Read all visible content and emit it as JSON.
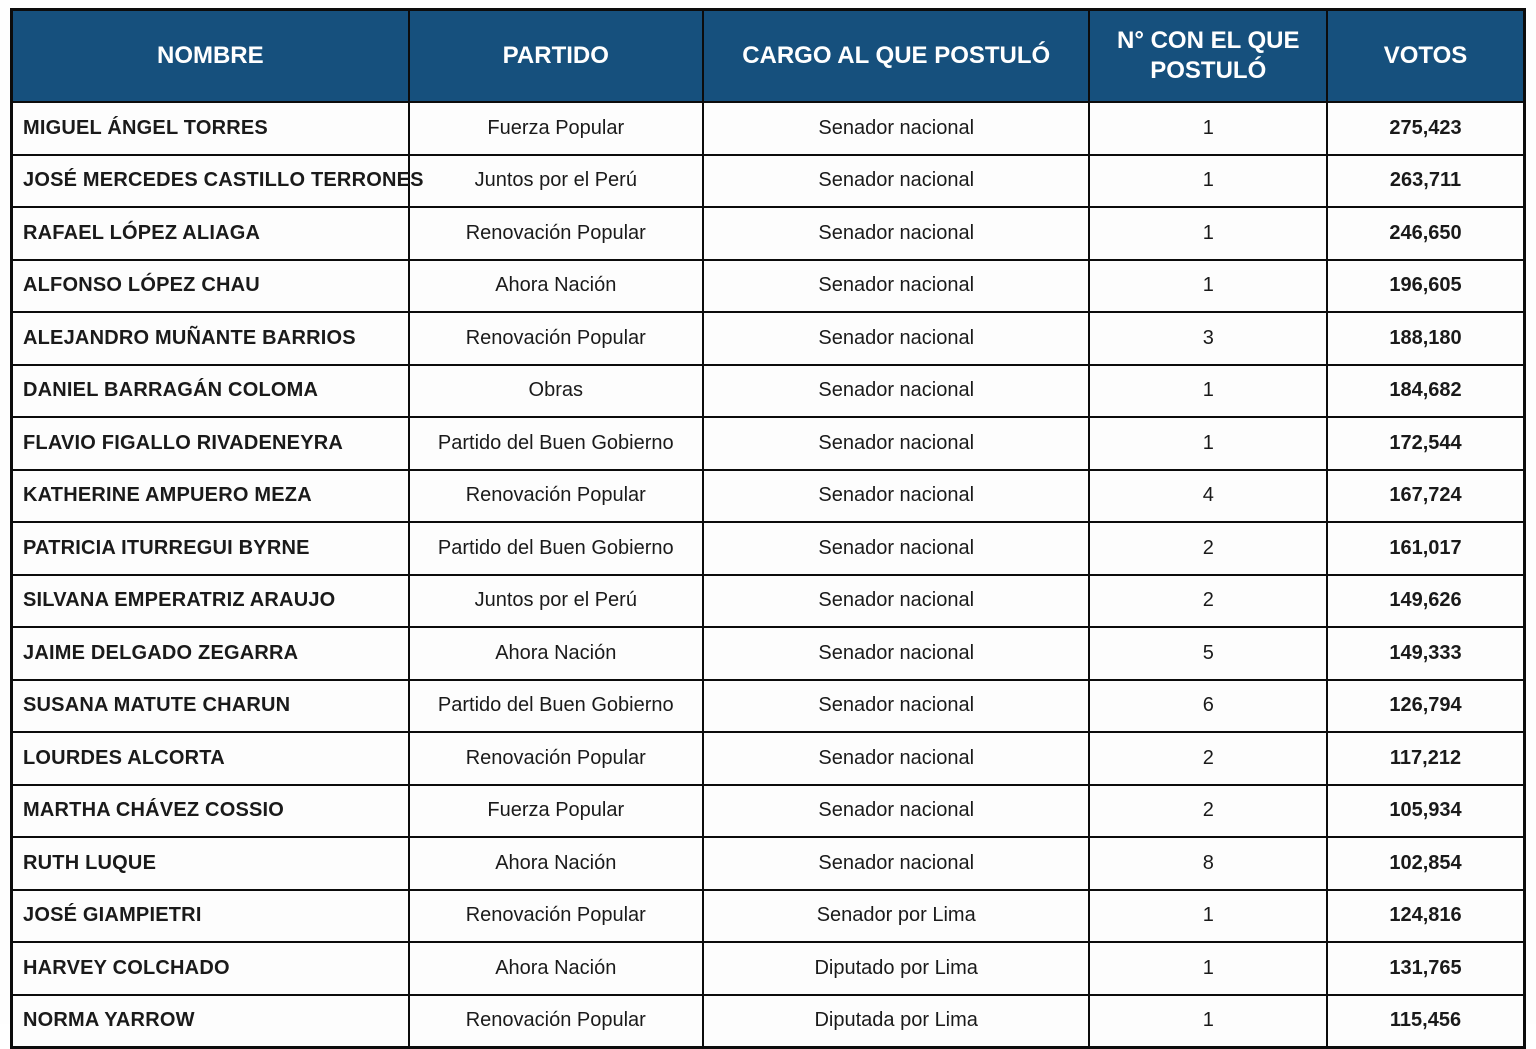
{
  "table": {
    "title_semantic": "Resultados de candidatos",
    "colors": {
      "header_bg": "#16507d",
      "header_text": "#ffffff",
      "border": "#0c0c0c",
      "row_bg": "#fdfdfd"
    },
    "columns": [
      {
        "key": "nombre",
        "label": "NOMBRE"
      },
      {
        "key": "partido",
        "label": "PARTIDO"
      },
      {
        "key": "cargo",
        "label": "CARGO AL QUE POSTULÓ"
      },
      {
        "key": "numero",
        "label": "N° CON EL QUE POSTULÓ"
      },
      {
        "key": "votos",
        "label": "VOTOS"
      }
    ],
    "rows": [
      [
        "MIGUEL ÁNGEL TORRES",
        "Fuerza Popular",
        "Senador nacional",
        "1",
        "275,423"
      ],
      [
        "JOSÉ MERCEDES CASTILLO TERRONES",
        "Juntos por el Perú",
        "Senador nacional",
        "1",
        "263,711"
      ],
      [
        "RAFAEL LÓPEZ ALIAGA",
        "Renovación Popular",
        "Senador nacional",
        "1",
        "246,650"
      ],
      [
        "ALFONSO LÓPEZ CHAU",
        "Ahora Nación",
        "Senador nacional",
        "1",
        "196,605"
      ],
      [
        "ALEJANDRO MUÑANTE BARRIOS",
        "Renovación Popular",
        "Senador nacional",
        "3",
        "188,180"
      ],
      [
        "DANIEL BARRAGÁN COLOMA",
        "Obras",
        "Senador nacional",
        "1",
        "184,682"
      ],
      [
        "FLAVIO FIGALLO RIVADENEYRA",
        "Partido del Buen Gobierno",
        "Senador nacional",
        "1",
        "172,544"
      ],
      [
        "KATHERINE AMPUERO MEZA",
        "Renovación Popular",
        "Senador nacional",
        "4",
        "167,724"
      ],
      [
        "PATRICIA ITURREGUI BYRNE",
        "Partido del Buen Gobierno",
        "Senador nacional",
        "2",
        "161,017"
      ],
      [
        "SILVANA EMPERATRIZ ARAUJO",
        "Juntos por el Perú",
        "Senador nacional",
        "2",
        "149,626"
      ],
      [
        "JAIME DELGADO ZEGARRA",
        "Ahora Nación",
        "Senador nacional",
        "5",
        "149,333"
      ],
      [
        "SUSANA MATUTE CHARUN",
        "Partido del Buen Gobierno",
        "Senador nacional",
        "6",
        "126,794"
      ],
      [
        "LOURDES ALCORTA",
        "Renovación Popular",
        "Senador nacional",
        "2",
        "117,212"
      ],
      [
        "MARTHA CHÁVEZ COSSIO",
        "Fuerza Popular",
        "Senador nacional",
        "2",
        "105,934"
      ],
      [
        "RUTH LUQUE",
        "Ahora Nación",
        "Senador nacional",
        "8",
        "102,854"
      ],
      [
        "JOSÉ GIAMPIETRI",
        "Renovación Popular",
        "Senador por Lima",
        "1",
        "124,816"
      ],
      [
        "HARVEY COLCHADO",
        "Ahora Nación",
        "Diputado por Lima",
        "1",
        "131,765"
      ],
      [
        "NORMA YARROW",
        "Renovación Popular",
        "Diputada por Lima",
        "1",
        "115,456"
      ]
    ]
  }
}
